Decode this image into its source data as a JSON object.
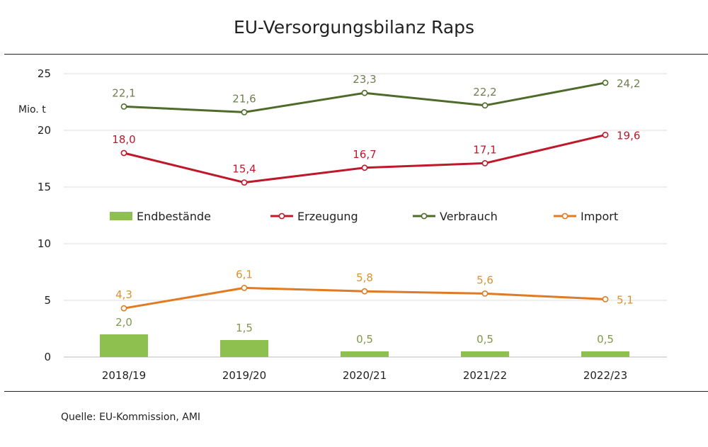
{
  "chart_data": {
    "type": "line",
    "title": "EU-Versorgungsbilanz Raps",
    "ylabel": "Mio. t",
    "xlabel": "",
    "ylim": [
      0,
      25
    ],
    "yticks": [
      "0",
      "5",
      "10",
      "15",
      "20",
      "25"
    ],
    "grid": true,
    "legend_position": "middle",
    "categories": [
      "2018/19",
      "2019/20",
      "2020/21",
      "2021/22",
      "2022/23"
    ],
    "series": [
      {
        "name": "Endbestände",
        "kind": "bar",
        "color": "#8dc04f",
        "label_color": "#7f9a4a",
        "values": [
          2.0,
          1.5,
          0.5,
          0.5,
          0.5
        ],
        "labels": [
          "2,0",
          "1,5",
          "0,5",
          "0,5",
          "0,5"
        ]
      },
      {
        "name": "Erzeugung",
        "kind": "line",
        "color": "#c0182b",
        "label_color": "#c0182b",
        "values": [
          18.0,
          15.4,
          16.7,
          17.1,
          19.6
        ],
        "labels": [
          "18,0",
          "15,4",
          "16,7",
          "17,1",
          "19,6"
        ]
      },
      {
        "name": "Verbrauch",
        "kind": "line",
        "color": "#4e6b2a",
        "label_color": "#6e7f4e",
        "values": [
          22.1,
          21.6,
          23.3,
          22.2,
          24.2
        ],
        "labels": [
          "22,1",
          "21,6",
          "23,3",
          "22,2",
          "24,2"
        ]
      },
      {
        "name": "Import",
        "kind": "line",
        "color": "#e07b24",
        "label_color": "#d9922f",
        "values": [
          4.3,
          6.1,
          5.8,
          5.6,
          5.1
        ],
        "labels": [
          "4,3",
          "6,1",
          "5,8",
          "5,6",
          "5,1"
        ]
      }
    ]
  },
  "source": "Quelle: EU-Kommission, AMI"
}
